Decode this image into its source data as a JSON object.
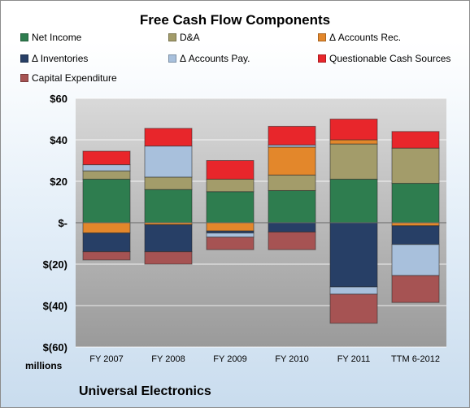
{
  "chart_data": {
    "type": "bar",
    "stacked": true,
    "title": "Free Cash Flow Components",
    "units_label": "millions",
    "footer": "Universal Electronics",
    "categories": [
      "FY 2007",
      "FY 2008",
      "FY 2009",
      "FY 2010",
      "FY 2011",
      "TTM 6-2012"
    ],
    "ylim": [
      -60,
      60
    ],
    "yticks": [
      {
        "value": 60,
        "label": "$60"
      },
      {
        "value": 40,
        "label": "$40"
      },
      {
        "value": 20,
        "label": "$20"
      },
      {
        "value": 0,
        "label": "$-"
      },
      {
        "value": -20,
        "label": "$(20)"
      },
      {
        "value": -40,
        "label": "$(40)"
      },
      {
        "value": -60,
        "label": "$(60)"
      }
    ],
    "grid": true,
    "legend_position": "top",
    "series": [
      {
        "name": "Net Income",
        "color": "#2e7d4f",
        "values": [
          21,
          16,
          15,
          15.5,
          21,
          19
        ]
      },
      {
        "name": "D&A",
        "color": "#a39c6a",
        "values": [
          4,
          6,
          6,
          7.5,
          17,
          17
        ]
      },
      {
        "name": "Δ Accounts Rec.",
        "color": "#e3872b",
        "values": [
          -5,
          -1,
          -4,
          13.5,
          2,
          -1.5
        ]
      },
      {
        "name": "Δ Inventories",
        "color": "#273f66",
        "values": [
          -9,
          -13,
          -1,
          -4.5,
          -31,
          -9
        ]
      },
      {
        "name": "Δ Accounts Pay.",
        "color": "#a8c0dc",
        "values": [
          3,
          15,
          -2,
          1,
          -3.5,
          -15
        ]
      },
      {
        "name": "Questionable Cash Sources",
        "color": "#e8262b",
        "values": [
          6.5,
          8.5,
          9,
          9,
          10,
          8
        ]
      },
      {
        "name": "Capital Expenditure",
        "color": "#a65353",
        "values": [
          -4,
          -6,
          -6,
          -8.5,
          -14,
          -13
        ]
      }
    ]
  }
}
